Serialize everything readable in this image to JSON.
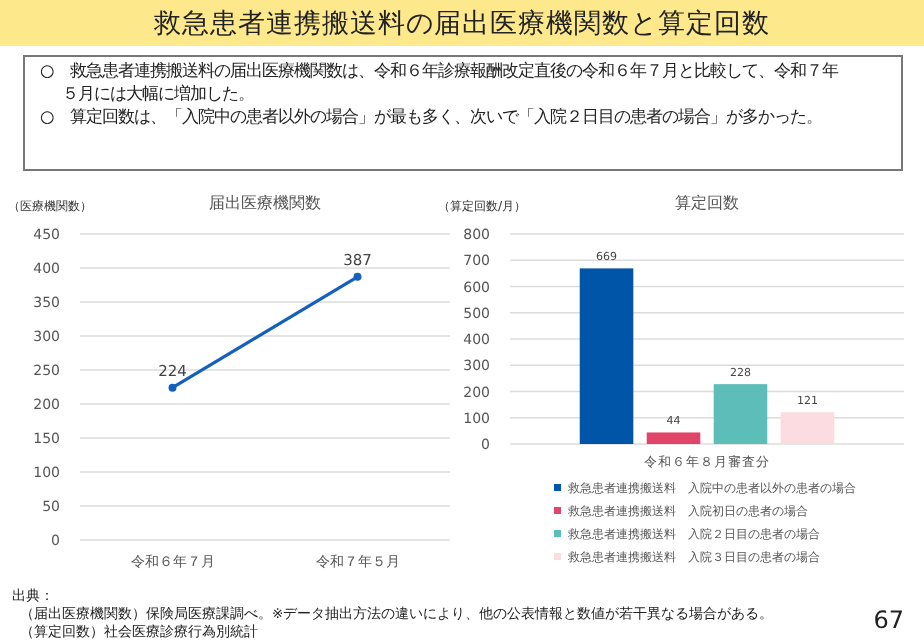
{
  "chart_data": [
    {
      "type": "other",
      "title": "救急患者連携搬送料の届出医療機関数と算定回数",
      "annotations": [
        "○　救急患者連携搬送料の届出医療機関数は、令和６年診療報酬改定直後の令和６年７月と比較して、令和７年５月には大幅に増加した。",
        "○　算定回数は、「入院中の患者以外の場合」が最も多く、次いで「入院２日目の患者の場合」が多かった。"
      ]
    },
    {
      "type": "line",
      "title": "届出医療機関数",
      "ylabel": "（医療機関数）",
      "categories": [
        "令和６年７月",
        "令和７年５月"
      ],
      "values": [
        224,
        387
      ],
      "color": "#1560bd",
      "ylim": [
        0,
        450
      ],
      "yticks": [
        0,
        50,
        100,
        150,
        200,
        250,
        300,
        350,
        400,
        450
      ],
      "grid": "y",
      "marker": "circle",
      "data_labels": true
    },
    {
      "type": "bar",
      "title": "算定回数",
      "ylabel": "（算定回数/月）",
      "categories": [
        "令和６年８月審査分"
      ],
      "series": [
        {
          "name": "救急患者連携搬送料　入院中の患者以外の患者の場合",
          "color": "#0055a8",
          "values": [
            669
          ]
        },
        {
          "name": "救急患者連携搬送料　入院初日の患者の場合",
          "color": "#e04468",
          "values": [
            44
          ]
        },
        {
          "name": "救急患者連携搬送料　入院２日目の患者の場合",
          "color": "#5cbdb9",
          "values": [
            228
          ]
        },
        {
          "name": "救急患者連携搬送料　入院３日目の患者の場合",
          "color": "#fcdbe1",
          "values": [
            121
          ]
        }
      ],
      "ylim": [
        0,
        800
      ],
      "yticks": [
        0,
        100,
        200,
        300,
        400,
        500,
        600,
        700,
        800
      ],
      "grid": "y",
      "data_labels": true,
      "legend": "bottom"
    },
    {
      "type": "other",
      "annotations": [
        "出典：",
        "（届出医療機関数）保険局医療課調べ。※データ抽出方法の違いにより、他の公表情報と数値が若干異なる場合がある。",
        "（算定回数）社会医療診療行為別統計",
        "67"
      ]
    }
  ]
}
